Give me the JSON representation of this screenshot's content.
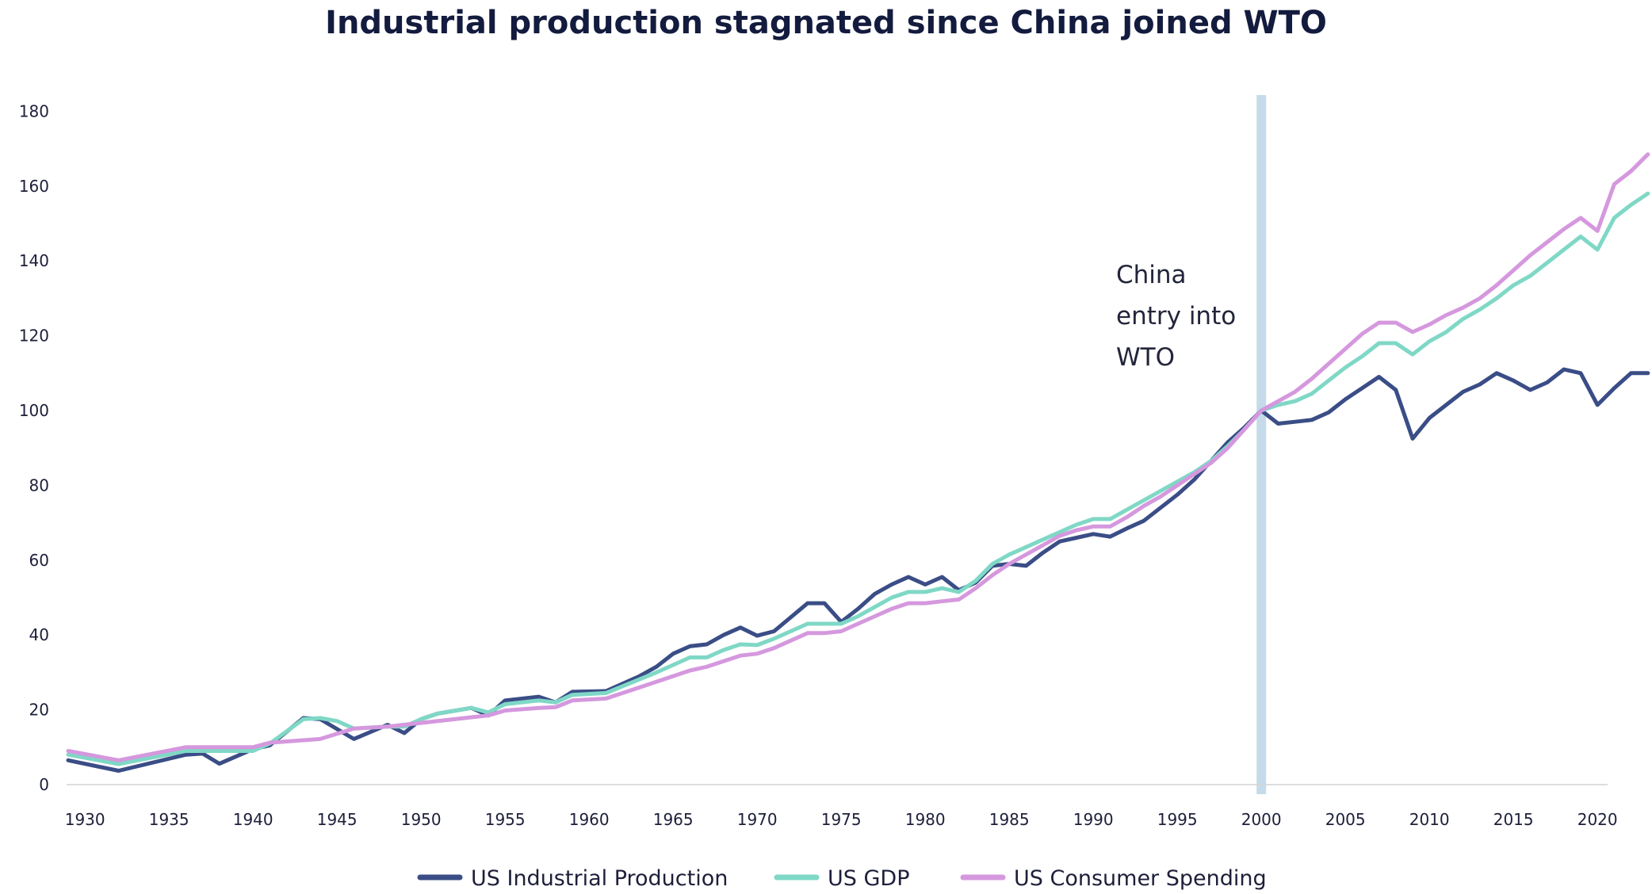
{
  "chart_data": {
    "type": "line",
    "title": "Industrial production stagnated since China joined WTO",
    "xlabel": "",
    "ylabel": "",
    "xlim": [
      1929,
      2023
    ],
    "ylim": [
      0,
      180
    ],
    "x_ticks": [
      "1930",
      "1935",
      "1940",
      "1945",
      "1950",
      "1955",
      "1960",
      "1965",
      "1970",
      "1975",
      "1980",
      "1985",
      "1990",
      "1995",
      "2000",
      "2005",
      "2010",
      "2015",
      "2020"
    ],
    "y_ticks": [
      "0",
      "20",
      "40",
      "60",
      "80",
      "100",
      "120",
      "140",
      "160",
      "180"
    ],
    "grid": false,
    "legend_position": "bottom",
    "annotation": {
      "x": 2000,
      "lines": [
        "China",
        "entry into",
        "WTO"
      ],
      "color": "#c5dbe9"
    },
    "series": [
      {
        "name": "US Industrial Production",
        "color": "#3a4d86",
        "points": [
          [
            1929,
            6.5
          ],
          [
            1932,
            3.7
          ],
          [
            1936,
            8
          ],
          [
            1937,
            8.3
          ],
          [
            1938,
            5.6
          ],
          [
            1940,
            9.5
          ],
          [
            1941,
            10.5
          ],
          [
            1943,
            17.8
          ],
          [
            1944,
            17.5
          ],
          [
            1946,
            12.2
          ],
          [
            1948,
            16
          ],
          [
            1949,
            13.8
          ],
          [
            1950,
            17.5
          ],
          [
            1951,
            19
          ],
          [
            1953,
            20.5
          ],
          [
            1954,
            18.5
          ],
          [
            1955,
            22.5
          ],
          [
            1957,
            23.5
          ],
          [
            1958,
            22
          ],
          [
            1959,
            24.8
          ],
          [
            1961,
            25
          ],
          [
            1963,
            29
          ],
          [
            1964,
            31.5
          ],
          [
            1965,
            35
          ],
          [
            1966,
            37
          ],
          [
            1967,
            37.5
          ],
          [
            1968,
            40
          ],
          [
            1969,
            42
          ],
          [
            1970,
            39.8
          ],
          [
            1971,
            41
          ],
          [
            1973,
            48.5
          ],
          [
            1974,
            48.5
          ],
          [
            1975,
            43.5
          ],
          [
            1976,
            47
          ],
          [
            1977,
            51
          ],
          [
            1978,
            53.5
          ],
          [
            1979,
            55.5
          ],
          [
            1980,
            53.5
          ],
          [
            1981,
            55.5
          ],
          [
            1982,
            52
          ],
          [
            1983,
            54
          ],
          [
            1984,
            58.5
          ],
          [
            1985,
            59
          ],
          [
            1986,
            58.5
          ],
          [
            1987,
            62
          ],
          [
            1988,
            65
          ],
          [
            1989,
            66
          ],
          [
            1990,
            67
          ],
          [
            1991,
            66.3
          ],
          [
            1992,
            68.5
          ],
          [
            1993,
            70.5
          ],
          [
            1994,
            74
          ],
          [
            1995,
            77.5
          ],
          [
            1996,
            81.5
          ],
          [
            1997,
            86.5
          ],
          [
            1998,
            91.5
          ],
          [
            1999,
            95.5
          ],
          [
            2000,
            100
          ],
          [
            2001,
            96.5
          ],
          [
            2002,
            97
          ],
          [
            2003,
            97.5
          ],
          [
            2004,
            99.5
          ],
          [
            2005,
            103
          ],
          [
            2006,
            106
          ],
          [
            2007,
            109
          ],
          [
            2008,
            105.5
          ],
          [
            2009,
            92.5
          ],
          [
            2010,
            98
          ],
          [
            2011,
            101.5
          ],
          [
            2012,
            105
          ],
          [
            2013,
            107
          ],
          [
            2014,
            110
          ],
          [
            2015,
            108
          ],
          [
            2016,
            105.5
          ],
          [
            2017,
            107.5
          ],
          [
            2018,
            111
          ],
          [
            2019,
            110
          ],
          [
            2020,
            101.5
          ],
          [
            2021,
            106
          ],
          [
            2022,
            110
          ],
          [
            2023,
            110
          ]
        ]
      },
      {
        "name": "US GDP",
        "color": "#7fd8c6",
        "points": [
          [
            1929,
            8
          ],
          [
            1932,
            5.5
          ],
          [
            1936,
            9
          ],
          [
            1939,
            9
          ],
          [
            1940,
            9
          ],
          [
            1941,
            11
          ],
          [
            1943,
            17.5
          ],
          [
            1944,
            17.8
          ],
          [
            1945,
            17
          ],
          [
            1946,
            15
          ],
          [
            1948,
            15.5
          ],
          [
            1949,
            15.5
          ],
          [
            1950,
            17.5
          ],
          [
            1951,
            19
          ],
          [
            1953,
            20.5
          ],
          [
            1954,
            19.3
          ],
          [
            1955,
            21.5
          ],
          [
            1957,
            22.5
          ],
          [
            1958,
            22
          ],
          [
            1959,
            24
          ],
          [
            1961,
            24.5
          ],
          [
            1964,
            30
          ],
          [
            1965,
            32
          ],
          [
            1966,
            34
          ],
          [
            1967,
            34
          ],
          [
            1968,
            36
          ],
          [
            1969,
            37.5
          ],
          [
            1970,
            37.3
          ],
          [
            1971,
            39
          ],
          [
            1973,
            43
          ],
          [
            1974,
            43
          ],
          [
            1975,
            43
          ],
          [
            1976,
            45
          ],
          [
            1977,
            47.5
          ],
          [
            1978,
            50
          ],
          [
            1979,
            51.5
          ],
          [
            1980,
            51.5
          ],
          [
            1981,
            52.5
          ],
          [
            1982,
            51.5
          ],
          [
            1983,
            54.5
          ],
          [
            1984,
            59
          ],
          [
            1985,
            61.5
          ],
          [
            1986,
            63.5
          ],
          [
            1987,
            65.5
          ],
          [
            1988,
            67.5
          ],
          [
            1989,
            69.5
          ],
          [
            1990,
            71
          ],
          [
            1991,
            71
          ],
          [
            1992,
            73.5
          ],
          [
            1993,
            76
          ],
          [
            1994,
            78.5
          ],
          [
            1995,
            81
          ],
          [
            1996,
            83.5
          ],
          [
            1997,
            86.5
          ],
          [
            1998,
            90.5
          ],
          [
            1999,
            95
          ],
          [
            2000,
            100
          ],
          [
            2001,
            101.5
          ],
          [
            2002,
            102.5
          ],
          [
            2003,
            104.5
          ],
          [
            2004,
            108
          ],
          [
            2005,
            111.5
          ],
          [
            2006,
            114.5
          ],
          [
            2007,
            118
          ],
          [
            2008,
            118
          ],
          [
            2009,
            115
          ],
          [
            2010,
            118.5
          ],
          [
            2011,
            121
          ],
          [
            2012,
            124.5
          ],
          [
            2013,
            127
          ],
          [
            2014,
            130
          ],
          [
            2015,
            133.5
          ],
          [
            2016,
            136
          ],
          [
            2017,
            139.5
          ],
          [
            2018,
            143
          ],
          [
            2019,
            146.5
          ],
          [
            2020,
            143
          ],
          [
            2021,
            151.5
          ],
          [
            2022,
            155
          ],
          [
            2023,
            158
          ]
        ]
      },
      {
        "name": "US Consumer Spending",
        "color": "#d598de",
        "points": [
          [
            1929,
            9
          ],
          [
            1932,
            6.5
          ],
          [
            1936,
            10
          ],
          [
            1940,
            10
          ],
          [
            1941,
            11.2
          ],
          [
            1944,
            12.2
          ],
          [
            1946,
            15
          ],
          [
            1948,
            15.5
          ],
          [
            1950,
            16.5
          ],
          [
            1953,
            18
          ],
          [
            1954,
            18.5
          ],
          [
            1955,
            19.8
          ],
          [
            1957,
            20.5
          ],
          [
            1958,
            20.7
          ],
          [
            1959,
            22.5
          ],
          [
            1961,
            23
          ],
          [
            1962,
            24.5
          ],
          [
            1964,
            27.5
          ],
          [
            1965,
            29
          ],
          [
            1966,
            30.5
          ],
          [
            1967,
            31.5
          ],
          [
            1968,
            33
          ],
          [
            1969,
            34.5
          ],
          [
            1970,
            35
          ],
          [
            1971,
            36.5
          ],
          [
            1973,
            40.5
          ],
          [
            1974,
            40.5
          ],
          [
            1975,
            41
          ],
          [
            1976,
            43
          ],
          [
            1977,
            45
          ],
          [
            1978,
            47
          ],
          [
            1979,
            48.5
          ],
          [
            1980,
            48.5
          ],
          [
            1981,
            49
          ],
          [
            1982,
            49.5
          ],
          [
            1983,
            52.5
          ],
          [
            1984,
            56
          ],
          [
            1985,
            59
          ],
          [
            1986,
            61.5
          ],
          [
            1987,
            64
          ],
          [
            1988,
            66.5
          ],
          [
            1989,
            68
          ],
          [
            1990,
            69
          ],
          [
            1991,
            69
          ],
          [
            1992,
            71.5
          ],
          [
            1993,
            74.5
          ],
          [
            1994,
            77
          ],
          [
            1995,
            80
          ],
          [
            1996,
            83
          ],
          [
            1997,
            86
          ],
          [
            1998,
            90
          ],
          [
            1999,
            95
          ],
          [
            2000,
            100
          ],
          [
            2001,
            102.5
          ],
          [
            2002,
            105
          ],
          [
            2003,
            108.5
          ],
          [
            2004,
            112.5
          ],
          [
            2005,
            116.5
          ],
          [
            2006,
            120.5
          ],
          [
            2007,
            123.5
          ],
          [
            2008,
            123.5
          ],
          [
            2009,
            121
          ],
          [
            2010,
            123
          ],
          [
            2011,
            125.5
          ],
          [
            2012,
            127.5
          ],
          [
            2013,
            130
          ],
          [
            2014,
            133.5
          ],
          [
            2015,
            137.5
          ],
          [
            2016,
            141.5
          ],
          [
            2017,
            145
          ],
          [
            2018,
            148.5
          ],
          [
            2019,
            151.5
          ],
          [
            2020,
            148
          ],
          [
            2021,
            160.5
          ],
          [
            2022,
            164
          ],
          [
            2023,
            168.5
          ]
        ]
      }
    ]
  }
}
